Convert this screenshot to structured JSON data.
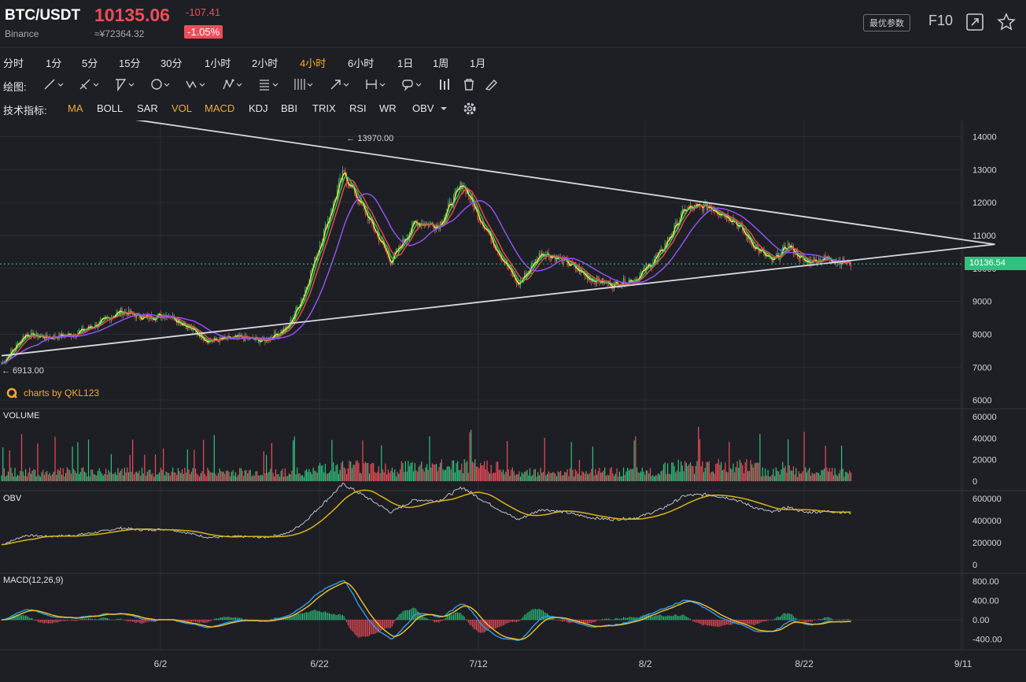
{
  "header": {
    "symbol": "BTC/USDT",
    "exchange": "Binance",
    "price": "10135.06",
    "cny_price": "≈¥72364.32",
    "change": "-107.41",
    "change_pct": "-1.05%",
    "optimize_button": "最优参数",
    "f10_label": "F10"
  },
  "timeframes": [
    "分时",
    "1分",
    "5分",
    "15分",
    "30分",
    "1小时",
    "2小时",
    "4小时",
    "6小时",
    "1日",
    "1周",
    "1月"
  ],
  "active_timeframe": "4小时",
  "drawing": {
    "label": "绘图:"
  },
  "indicators": {
    "label": "技术指标:",
    "items": [
      "MA",
      "BOLL",
      "SAR",
      "VOL",
      "MACD",
      "KDJ",
      "BBI",
      "TRIX",
      "RSI",
      "WR",
      "OBV"
    ],
    "active": [
      "MA",
      "VOL",
      "MACD"
    ]
  },
  "watermark": "charts by QKL123",
  "current_price_tag": "10136.54",
  "colors": {
    "up": "#2ec27e",
    "down": "#ee4d5a",
    "accent": "#f0a93b",
    "ma_fast": "#f2e43a",
    "ma_mid": "#35c759",
    "ma_slow": "#e5484d",
    "ma_long": "#8f52f0",
    "dif": "#2f9bef",
    "dea": "#f2c12e",
    "obv": "#bfc1c6",
    "obv_ma": "#d6b31a"
  },
  "chart_data": [
    {
      "type": "candlestick",
      "title": "",
      "y_ticks": [
        14000,
        13000,
        12000,
        11000,
        10000,
        9000,
        8000,
        7000,
        6000
      ],
      "ylim": [
        6000,
        14000
      ],
      "x_ticks": [
        "6/2",
        "6/22",
        "7/12",
        "8/2",
        "8/22",
        "9/11"
      ],
      "annotations": [
        {
          "text": "13970.00",
          "date": "6/25",
          "value": 13970
        },
        {
          "text": "6913.00",
          "date": "5/13",
          "value": 6913
        }
      ],
      "close_series": [
        {
          "date": "5/13",
          "close": 7100
        },
        {
          "date": "5/16",
          "close": 8000
        },
        {
          "date": "5/19",
          "close": 7900
        },
        {
          "date": "5/22",
          "close": 8000
        },
        {
          "date": "5/25",
          "close": 8300
        },
        {
          "date": "5/28",
          "close": 8700
        },
        {
          "date": "5/31",
          "close": 8500
        },
        {
          "date": "6/3",
          "close": 8600
        },
        {
          "date": "6/5",
          "close": 8300
        },
        {
          "date": "6/8",
          "close": 7800
        },
        {
          "date": "6/12",
          "close": 7900
        },
        {
          "date": "6/15",
          "close": 7800
        },
        {
          "date": "6/18",
          "close": 8200
        },
        {
          "date": "6/20",
          "close": 9200
        },
        {
          "date": "6/22",
          "close": 10700
        },
        {
          "date": "6/25",
          "close": 12900
        },
        {
          "date": "6/28",
          "close": 11600
        },
        {
          "date": "7/1",
          "close": 10200
        },
        {
          "date": "7/4",
          "close": 11400
        },
        {
          "date": "7/7",
          "close": 11300
        },
        {
          "date": "7/10",
          "close": 12600
        },
        {
          "date": "7/12",
          "close": 11600
        },
        {
          "date": "7/15",
          "close": 10300
        },
        {
          "date": "7/17",
          "close": 9500
        },
        {
          "date": "7/20",
          "close": 10500
        },
        {
          "date": "7/23",
          "close": 10200
        },
        {
          "date": "7/26",
          "close": 9700
        },
        {
          "date": "7/29",
          "close": 9500
        },
        {
          "date": "8/1",
          "close": 9700
        },
        {
          "date": "8/4",
          "close": 10500
        },
        {
          "date": "8/7",
          "close": 11800
        },
        {
          "date": "8/10",
          "close": 11900
        },
        {
          "date": "8/13",
          "close": 11500
        },
        {
          "date": "8/16",
          "close": 10600
        },
        {
          "date": "8/18",
          "close": 10200
        },
        {
          "date": "8/20",
          "close": 10700
        },
        {
          "date": "8/22",
          "close": 10200
        },
        {
          "date": "8/25",
          "close": 10300
        },
        {
          "date": "8/28",
          "close": 10135
        }
      ],
      "trendlines": [
        {
          "name": "upper",
          "from": {
            "date": "5/13",
            "value": 15100
          },
          "to": {
            "date": "9/15",
            "value": 10730
          }
        },
        {
          "name": "lower",
          "from": {
            "date": "5/13",
            "value": 7350
          },
          "to": {
            "date": "9/15",
            "value": 10730
          }
        }
      ]
    },
    {
      "type": "bar",
      "title": "VOLUME",
      "y_ticks": [
        60000,
        40000,
        20000,
        0
      ],
      "ylim": [
        0,
        60000
      ]
    },
    {
      "type": "line",
      "title": "OBV",
      "y_ticks": [
        600000,
        400000,
        200000,
        0
      ],
      "ylim": [
        0,
        600000
      ]
    },
    {
      "type": "line",
      "title": "MACD(12,26,9)",
      "y_ticks": [
        "800.00",
        "400.00",
        "0.00",
        "-400.00"
      ],
      "ylim": [
        -400,
        800
      ]
    }
  ]
}
